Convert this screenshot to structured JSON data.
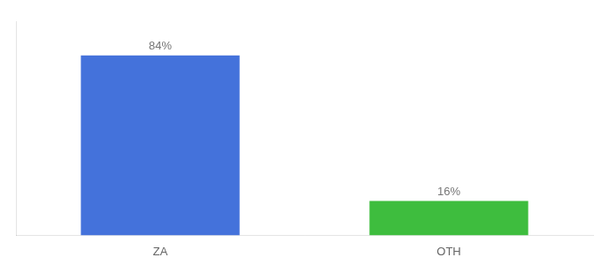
{
  "chart_data": {
    "type": "bar",
    "categories": [
      "ZA",
      "OTH"
    ],
    "values": [
      84,
      16
    ],
    "value_labels": [
      "84%",
      "16%"
    ],
    "colors": [
      "#4472db",
      "#3ebd3e"
    ],
    "ylim": [
      0,
      100
    ],
    "grid": false,
    "data_labels": true,
    "tick_labels": "x"
  }
}
